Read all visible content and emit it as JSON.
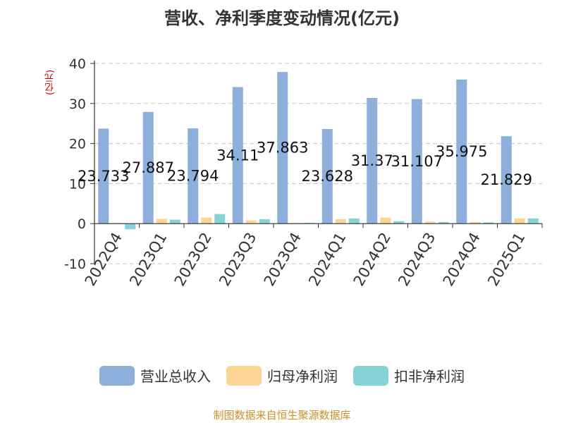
{
  "chart_data": {
    "type": "bar",
    "title": "营收、净利季度变动情况(亿元)",
    "unit_label": "(亿元)",
    "categories": [
      "2022Q4",
      "2023Q1",
      "2023Q2",
      "2023Q3",
      "2023Q4",
      "2024Q1",
      "2024Q2",
      "2024Q3",
      "2024Q4",
      "2025Q1"
    ],
    "series": [
      {
        "name": "营业总收入",
        "color": "#8eaedb",
        "values": [
          23.733,
          27.887,
          23.794,
          34.11,
          37.863,
          23.628,
          31.37,
          31.107,
          35.975,
          21.829
        ],
        "labels": [
          "23.733",
          "27.887",
          "23.794",
          "34.11",
          "37.863",
          "23.628",
          "31.37",
          "31.107",
          "35.975",
          "21.829"
        ]
      },
      {
        "name": "归母净利润",
        "color": "#fdd593",
        "values": [
          0.2,
          1.2,
          1.5,
          0.8,
          0.2,
          1.1,
          1.5,
          0.5,
          0.4,
          1.3
        ]
      },
      {
        "name": "扣非净利润",
        "color": "#86d3d7",
        "values": [
          -1.4,
          1.0,
          2.4,
          1.1,
          0.2,
          1.3,
          0.6,
          0.4,
          0.3,
          1.3
        ]
      }
    ],
    "yticks": [
      "40",
      "30",
      "20",
      "10",
      "0",
      "-10"
    ],
    "ylim": [
      -10,
      40
    ],
    "grid": true,
    "legend": "bottom-center"
  },
  "source_note": "制图数据来自恒生聚源数据库"
}
